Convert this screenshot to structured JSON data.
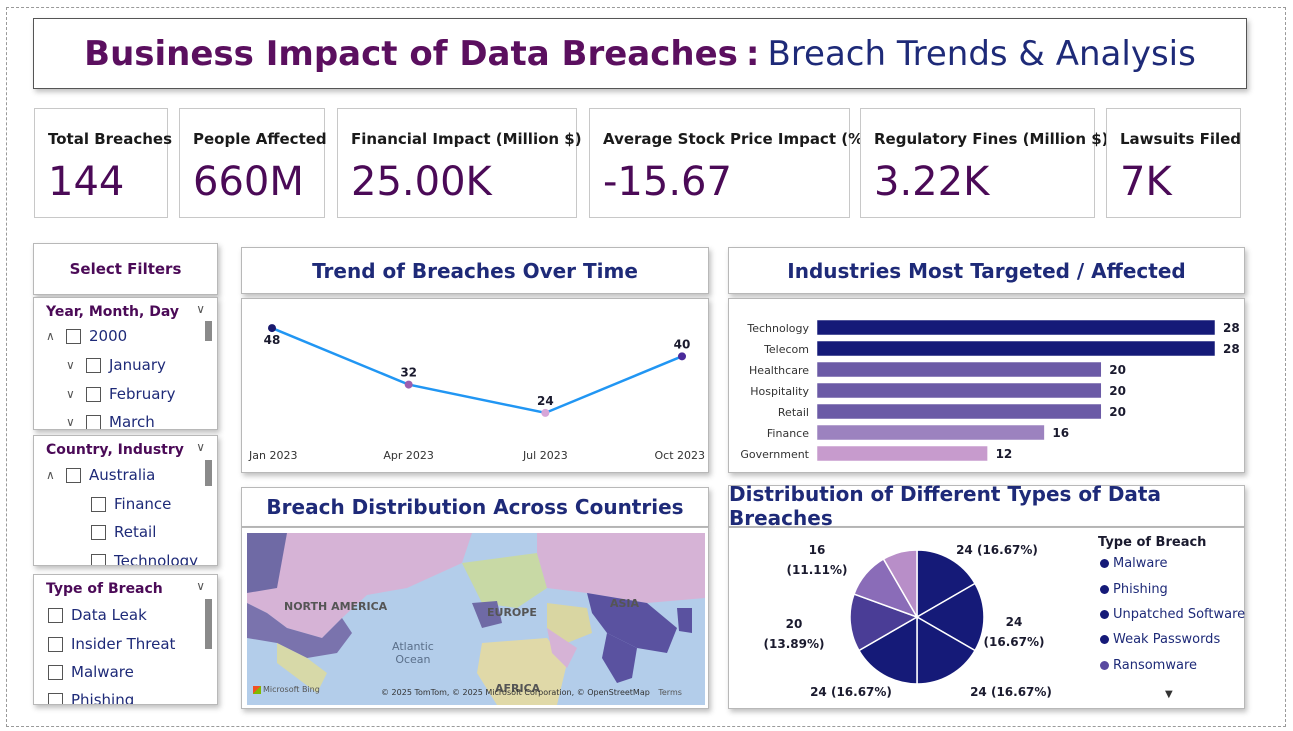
{
  "header": {
    "title_main": "Business Impact of Data Breaches",
    "title_sep": ":",
    "title_sub": "Breach Trends & Analysis"
  },
  "kpis": [
    {
      "label": "Total Breaches",
      "value": "144"
    },
    {
      "label": "People Affected",
      "value": "660M"
    },
    {
      "label": "Financial Impact (Million $)",
      "value": "25.00K"
    },
    {
      "label": "Average Stock Price Impact (%)",
      "value": "-15.67"
    },
    {
      "label": "Regulatory Fines (Million $)",
      "value": "3.22K"
    },
    {
      "label": "Lawsuits Filed",
      "value": "7K"
    }
  ],
  "filters": {
    "header": "Select Filters",
    "date_slicer": {
      "title": "Year, Month, Day",
      "items": [
        "2000",
        "January",
        "February",
        "March"
      ]
    },
    "country_slicer": {
      "title": "Country, Industry",
      "items": [
        "Australia",
        "Finance",
        "Retail",
        "Technology"
      ]
    },
    "type_slicer": {
      "title": "Type of Breach",
      "items": [
        "Data Leak",
        "Insider Threat",
        "Malware",
        "Phishing"
      ]
    }
  },
  "sections": {
    "trend": "Trend of Breaches Over Time",
    "industries": "Industries Most Targeted / Affected",
    "map": "Breach Distribution Across Countries",
    "types": "Distribution of Different Types of Data Breaches"
  },
  "map": {
    "labels": {
      "na": "NORTH AMERICA",
      "europe": "EUROPE",
      "asia": "ASIA",
      "africa": "AFRICA",
      "ocean1": "Atlantic",
      "ocean2": "Ocean"
    },
    "brand": "Microsoft Bing",
    "attribution": "© 2025 TomTom, © 2025 Microsoft Corporation, © OpenStreetMap",
    "terms": "Terms"
  },
  "colors": {
    "line": "#2196f3",
    "navy": "#151a78",
    "purple": "#6b5aa6",
    "lavender": "#9c82bf",
    "pink": "#c79bcd",
    "title_purple": "#5b0f5f",
    "title_blue": "#1e2a78"
  },
  "chart_data": [
    {
      "type": "line",
      "title": "Trend of Breaches Over Time",
      "categories": [
        "Jan 2023",
        "Apr 2023",
        "Jul 2023",
        "Oct 2023"
      ],
      "values": [
        48,
        32,
        24,
        40
      ],
      "point_colors": [
        "#1a1a6e",
        "#9b5fb0",
        "#d7a6d8",
        "#4a2a9a"
      ]
    },
    {
      "type": "bar",
      "title": "Industries Most Targeted / Affected",
      "orientation": "horizontal",
      "categories": [
        "Technology",
        "Telecom",
        "Healthcare",
        "Hospitality",
        "Retail",
        "Finance",
        "Government"
      ],
      "values": [
        28,
        28,
        20,
        20,
        20,
        16,
        12
      ],
      "colors": [
        "#151a78",
        "#151a78",
        "#6b5aa6",
        "#6b5aa6",
        "#6b5aa6",
        "#9c82bf",
        "#c79bcd"
      ]
    },
    {
      "type": "pie",
      "title": "Distribution of Different Types of Data Breaches",
      "legend_title": "Type of Breach",
      "legend": [
        "Malware",
        "Phishing",
        "Unpatched Software",
        "Weak Passwords",
        "Ransomware"
      ],
      "slices": [
        {
          "value": 24,
          "label": "24 (16.67%)",
          "color": "#151a78"
        },
        {
          "value": 24,
          "label": "24 (16.67%)",
          "color": "#151a78"
        },
        {
          "value": 24,
          "label": "24 (16.67%)",
          "color": "#151a78"
        },
        {
          "value": 24,
          "label": "24 (16.67%)",
          "color": "#151a78"
        },
        {
          "value": 20,
          "label": "20 (13.89%)",
          "color": "#4a3d96"
        },
        {
          "value": 16,
          "label": "16 (11.11%)",
          "color": "#8a6cb8"
        },
        {
          "value": 12,
          "color": "#b88ec8"
        }
      ]
    }
  ]
}
